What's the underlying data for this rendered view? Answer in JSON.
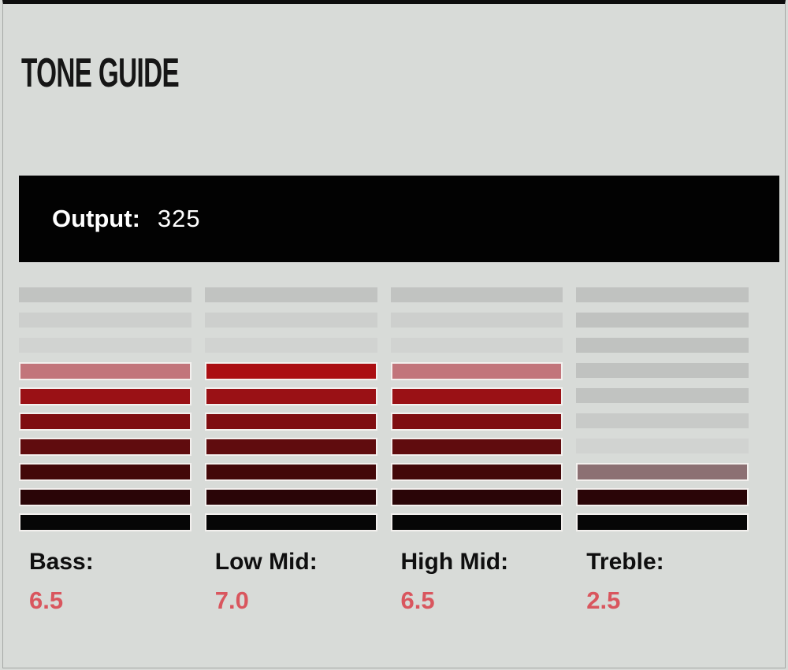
{
  "title": "TONE GUIDE",
  "output": {
    "label": "Output:",
    "value": "325"
  },
  "colors": {
    "background": "#d8dbd8",
    "panel_top_border": "#0d0d0d",
    "panel_side_border": "#a5a8a5",
    "output_bar_bg": "#020202",
    "output_bar_border": "#d9dbd9",
    "output_text": "#ffffff",
    "title_text": "#161616",
    "band_label_text": "#0f0f0f",
    "band_value_text": "#d9565e",
    "lit_segment_border": "#f3f0ee",
    "unlit_segment_gray": "#c1c3c1"
  },
  "chart_data": {
    "type": "bar",
    "title": "TONE GUIDE",
    "categories": [
      "Bass",
      "Low Mid",
      "High Mid",
      "Treble"
    ],
    "values": [
      6.5,
      7.0,
      6.5,
      2.5
    ],
    "scale": {
      "min": 0,
      "max": 10,
      "segments_per_column": 10,
      "half_step_rendering": "blended-color segment"
    },
    "output_level": 325,
    "legend_position": "none",
    "grid": false,
    "columns": [
      {
        "label": "Bass:",
        "value": "6.5",
        "segments": [
          {
            "color": "#c1c3c1",
            "lit": false
          },
          {
            "color": "#cdcfcd",
            "lit": false
          },
          {
            "color": "#d1d3d1",
            "lit": false
          },
          {
            "color": "#c2757b",
            "lit": true
          },
          {
            "color": "#9a1115",
            "lit": true
          },
          {
            "color": "#7f0e11",
            "lit": true
          },
          {
            "color": "#600c0e",
            "lit": true
          },
          {
            "color": "#430809",
            "lit": true
          },
          {
            "color": "#2a0507",
            "lit": true
          },
          {
            "color": "#060606",
            "lit": true
          }
        ]
      },
      {
        "label": "Low Mid:",
        "value": "7.0",
        "segments": [
          {
            "color": "#c1c3c1",
            "lit": false
          },
          {
            "color": "#cdcfcd",
            "lit": false
          },
          {
            "color": "#d1d3d1",
            "lit": false
          },
          {
            "color": "#ab0e12",
            "lit": true
          },
          {
            "color": "#9a1115",
            "lit": true
          },
          {
            "color": "#7f0e11",
            "lit": true
          },
          {
            "color": "#600c0e",
            "lit": true
          },
          {
            "color": "#430809",
            "lit": true
          },
          {
            "color": "#2a0507",
            "lit": true
          },
          {
            "color": "#060606",
            "lit": true
          }
        ]
      },
      {
        "label": "High Mid:",
        "value": "6.5",
        "segments": [
          {
            "color": "#c1c3c1",
            "lit": false
          },
          {
            "color": "#cdcfcd",
            "lit": false
          },
          {
            "color": "#d1d3d1",
            "lit": false
          },
          {
            "color": "#c2757b",
            "lit": true
          },
          {
            "color": "#9a1115",
            "lit": true
          },
          {
            "color": "#7f0e11",
            "lit": true
          },
          {
            "color": "#600c0e",
            "lit": true
          },
          {
            "color": "#430809",
            "lit": true
          },
          {
            "color": "#2a0507",
            "lit": true
          },
          {
            "color": "#060606",
            "lit": true
          }
        ]
      },
      {
        "label": "Treble:",
        "value": "2.5",
        "segments": [
          {
            "color": "#c0c2c0",
            "lit": false
          },
          {
            "color": "#c0c2c0",
            "lit": false
          },
          {
            "color": "#c0c2c0",
            "lit": false
          },
          {
            "color": "#c0c2c0",
            "lit": false
          },
          {
            "color": "#c1c3c1",
            "lit": false
          },
          {
            "color": "#c8cac8",
            "lit": false
          },
          {
            "color": "#d1d3d1",
            "lit": false
          },
          {
            "color": "#8c7073",
            "lit": true
          },
          {
            "color": "#2a0507",
            "lit": true
          },
          {
            "color": "#060606",
            "lit": true
          }
        ]
      }
    ]
  }
}
